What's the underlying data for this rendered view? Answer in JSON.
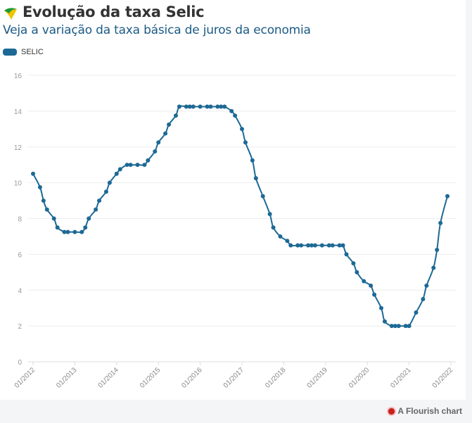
{
  "header": {
    "title": "Evolução da taxa Selic",
    "subtitle": "Veja a variação da taxa básica de juros da economia"
  },
  "footer": {
    "label": "A Flourish chart"
  },
  "chart_data": {
    "type": "line",
    "title": "Evolução da taxa Selic",
    "subtitle": "Veja a variação da taxa básica de juros da economia",
    "xlabel": "",
    "ylabel": "",
    "ylim": [
      0,
      16
    ],
    "yticks": [
      "0",
      "2",
      "4",
      "6",
      "8",
      "10",
      "12",
      "14",
      "16"
    ],
    "xticks": [
      "01/2012",
      "01/2013",
      "01/2014",
      "01/2015",
      "01/2016",
      "01/2017",
      "01/2018",
      "01/2019",
      "01/2020",
      "01/2021",
      "01/2022"
    ],
    "grid": true,
    "legend": "top-left",
    "color": "#1d6996",
    "series": [
      {
        "name": "SELIC",
        "x": [
          "2012-01",
          "2012-03",
          "2012-04",
          "2012-05",
          "2012-07",
          "2012-08",
          "2012-10",
          "2012-11",
          "2013-01",
          "2013-03",
          "2013-04",
          "2013-05",
          "2013-07",
          "2013-08",
          "2013-10",
          "2013-11",
          "2014-01",
          "2014-02",
          "2014-04",
          "2014-05",
          "2014-07",
          "2014-09",
          "2014-10",
          "2014-12",
          "2015-01",
          "2015-03",
          "2015-04",
          "2015-06",
          "2015-07",
          "2015-09",
          "2015-10",
          "2015-11",
          "2016-01",
          "2016-03",
          "2016-04",
          "2016-06",
          "2016-07",
          "2016-08",
          "2016-10",
          "2016-11",
          "2017-01",
          "2017-02",
          "2017-04",
          "2017-05",
          "2017-07",
          "2017-09",
          "2017-10",
          "2017-12",
          "2018-02",
          "2018-03",
          "2018-05",
          "2018-06",
          "2018-08",
          "2018-09",
          "2018-10",
          "2018-12",
          "2019-02",
          "2019-03",
          "2019-05",
          "2019-06",
          "2019-07",
          "2019-09",
          "2019-10",
          "2019-12",
          "2020-02",
          "2020-03",
          "2020-05",
          "2020-06",
          "2020-08",
          "2020-09",
          "2020-10",
          "2020-12",
          "2021-01",
          "2021-03",
          "2021-05",
          "2021-06",
          "2021-08",
          "2021-09",
          "2021-10",
          "2021-12"
        ],
        "values": [
          10.5,
          9.75,
          9.0,
          8.5,
          8.0,
          7.5,
          7.25,
          7.25,
          7.25,
          7.25,
          7.5,
          8.0,
          8.5,
          9.0,
          9.5,
          10.0,
          10.5,
          10.75,
          11.0,
          11.0,
          11.0,
          11.0,
          11.25,
          11.75,
          12.25,
          12.75,
          13.25,
          13.75,
          14.25,
          14.25,
          14.25,
          14.25,
          14.25,
          14.25,
          14.25,
          14.25,
          14.25,
          14.25,
          14.0,
          13.75,
          13.0,
          12.25,
          11.25,
          10.25,
          9.25,
          8.25,
          7.5,
          7.0,
          6.75,
          6.5,
          6.5,
          6.5,
          6.5,
          6.5,
          6.5,
          6.5,
          6.5,
          6.5,
          6.5,
          6.5,
          6.0,
          5.5,
          5.0,
          4.5,
          4.25,
          3.75,
          3.0,
          2.25,
          2.0,
          2.0,
          2.0,
          2.0,
          2.0,
          2.75,
          3.5,
          4.25,
          5.25,
          6.25,
          7.75,
          9.25
        ]
      }
    ]
  }
}
